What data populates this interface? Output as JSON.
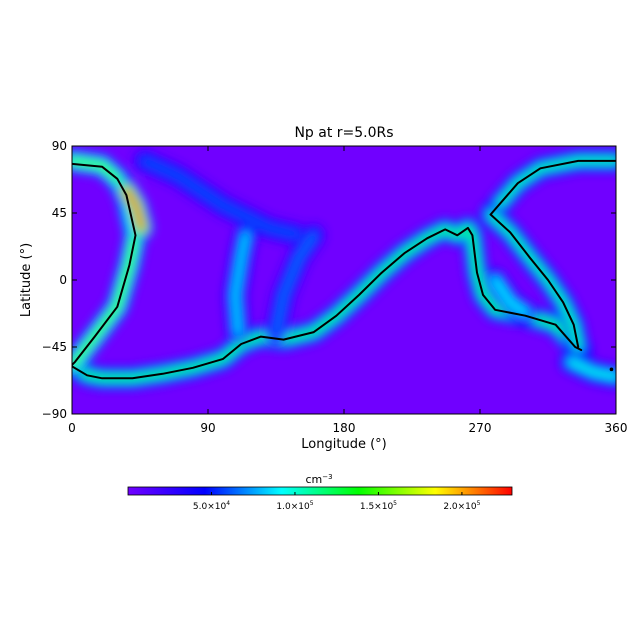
{
  "chart_data": {
    "type": "heatmap",
    "title": "Np at r=5.0Rs",
    "xlabel": "Longitude (°)",
    "ylabel": "Latitude (°)",
    "xlim": [
      0,
      360
    ],
    "ylim": [
      -90,
      90
    ],
    "x_ticks": [
      "0",
      "90",
      "180",
      "270",
      "360"
    ],
    "y_ticks": [
      "90",
      "45",
      "0",
      "−45",
      "−90"
    ],
    "x_tick_values": [
      0,
      90,
      180,
      270,
      360
    ],
    "y_tick_values": [
      90,
      45,
      0,
      -45,
      -90
    ],
    "colorbar": {
      "unit_base": "cm",
      "unit_exp": "−3",
      "range": [
        0,
        230000
      ],
      "ticks": [
        {
          "value": 50000,
          "mant": "5.0×10",
          "exp": "4"
        },
        {
          "value": 100000,
          "mant": "1.0×10",
          "exp": "5"
        },
        {
          "value": 150000,
          "mant": "1.5×10",
          "exp": "5"
        },
        {
          "value": 200000,
          "mant": "2.0×10",
          "exp": "5"
        }
      ],
      "colors": [
        "#7000ff",
        "#0000ff",
        "#00ffff",
        "#00ff00",
        "#ffff00",
        "#ff0000"
      ]
    },
    "neutral_lines": [
      [
        [
          0,
          -58
        ],
        [
          10,
          -64
        ],
        [
          20,
          -66
        ],
        [
          40,
          -66
        ],
        [
          60,
          -63
        ],
        [
          80,
          -59
        ],
        [
          100,
          -53
        ],
        [
          112,
          -43
        ],
        [
          125,
          -38
        ],
        [
          140,
          -40
        ],
        [
          160,
          -35
        ],
        [
          175,
          -24
        ],
        [
          190,
          -10
        ],
        [
          205,
          5
        ],
        [
          220,
          18
        ],
        [
          235,
          28
        ],
        [
          247,
          34
        ],
        [
          255,
          30
        ],
        [
          262,
          35
        ],
        [
          265,
          30
        ],
        [
          268,
          5
        ],
        [
          272,
          -10
        ],
        [
          280,
          -20
        ],
        [
          300,
          -24
        ],
        [
          320,
          -30
        ],
        [
          333,
          -45
        ],
        [
          337,
          -47
        ]
      ],
      [
        [
          0,
          78
        ],
        [
          20,
          76
        ],
        [
          30,
          68
        ],
        [
          36,
          57
        ],
        [
          42,
          30
        ],
        [
          38,
          10
        ],
        [
          30,
          -18
        ],
        [
          15,
          -38
        ],
        [
          2,
          -55
        ],
        [
          0,
          -57
        ]
      ],
      [
        [
          277,
          44
        ],
        [
          295,
          65
        ],
        [
          310,
          75
        ],
        [
          335,
          80
        ],
        [
          360,
          80
        ]
      ],
      [
        [
          277,
          44
        ],
        [
          290,
          32
        ],
        [
          303,
          15
        ],
        [
          315,
          0
        ],
        [
          325,
          -15
        ],
        [
          332,
          -30
        ],
        [
          335,
          -45
        ]
      ]
    ],
    "density_ridges": [
      {
        "points": [
          [
            0,
            -58
          ],
          [
            10,
            -64
          ],
          [
            20,
            -66
          ],
          [
            40,
            -66
          ],
          [
            60,
            -63
          ],
          [
            80,
            -59
          ],
          [
            100,
            -53
          ],
          [
            112,
            -43
          ],
          [
            125,
            -38
          ],
          [
            140,
            -40
          ],
          [
            160,
            -35
          ],
          [
            175,
            -24
          ],
          [
            190,
            -10
          ],
          [
            205,
            5
          ],
          [
            220,
            18
          ],
          [
            235,
            28
          ],
          [
            247,
            34
          ],
          [
            255,
            30
          ],
          [
            262,
            35
          ],
          [
            265,
            30
          ],
          [
            268,
            5
          ],
          [
            272,
            -10
          ],
          [
            280,
            -20
          ],
          [
            300,
            -24
          ],
          [
            320,
            -30
          ],
          [
            333,
            -45
          ],
          [
            337,
            -47
          ]
        ],
        "value": 120000
      },
      {
        "points": [
          [
            0,
            80
          ],
          [
            20,
            77
          ],
          [
            30,
            68
          ],
          [
            36,
            57
          ],
          [
            42,
            30
          ],
          [
            38,
            10
          ],
          [
            30,
            -18
          ],
          [
            15,
            -38
          ],
          [
            2,
            -55
          ],
          [
            0,
            -57
          ]
        ],
        "value": 150000
      },
      {
        "points": [
          [
            277,
            44
          ],
          [
            295,
            65
          ],
          [
            310,
            75
          ],
          [
            335,
            80
          ],
          [
            360,
            80
          ]
        ],
        "value": 110000
      },
      {
        "points": [
          [
            277,
            44
          ],
          [
            290,
            32
          ],
          [
            303,
            15
          ],
          [
            315,
            0
          ],
          [
            325,
            -15
          ],
          [
            332,
            -30
          ],
          [
            335,
            -45
          ]
        ],
        "value": 110000
      },
      {
        "points": [
          [
            36,
            60
          ],
          [
            42,
            50
          ],
          [
            46,
            35
          ]
        ],
        "value": 210000
      },
      {
        "points": [
          [
            48,
            80
          ],
          [
            70,
            70
          ],
          [
            100,
            50
          ],
          [
            130,
            35
          ],
          [
            150,
            30
          ]
        ],
        "value": 60000
      },
      {
        "points": [
          [
            110,
            -35
          ],
          [
            108,
            -10
          ],
          [
            112,
            15
          ],
          [
            115,
            30
          ]
        ],
        "value": 85000
      },
      {
        "points": [
          [
            135,
            -35
          ],
          [
            140,
            -10
          ],
          [
            150,
            15
          ],
          [
            160,
            30
          ]
        ],
        "value": 65000
      },
      {
        "points": [
          [
            280,
            0
          ],
          [
            290,
            -15
          ],
          [
            300,
            -22
          ]
        ],
        "value": 90000
      },
      {
        "points": [
          [
            330,
            -55
          ],
          [
            345,
            -62
          ],
          [
            360,
            -65
          ]
        ],
        "value": 95000
      }
    ],
    "marker": {
      "x": 357,
      "y": -60
    }
  }
}
